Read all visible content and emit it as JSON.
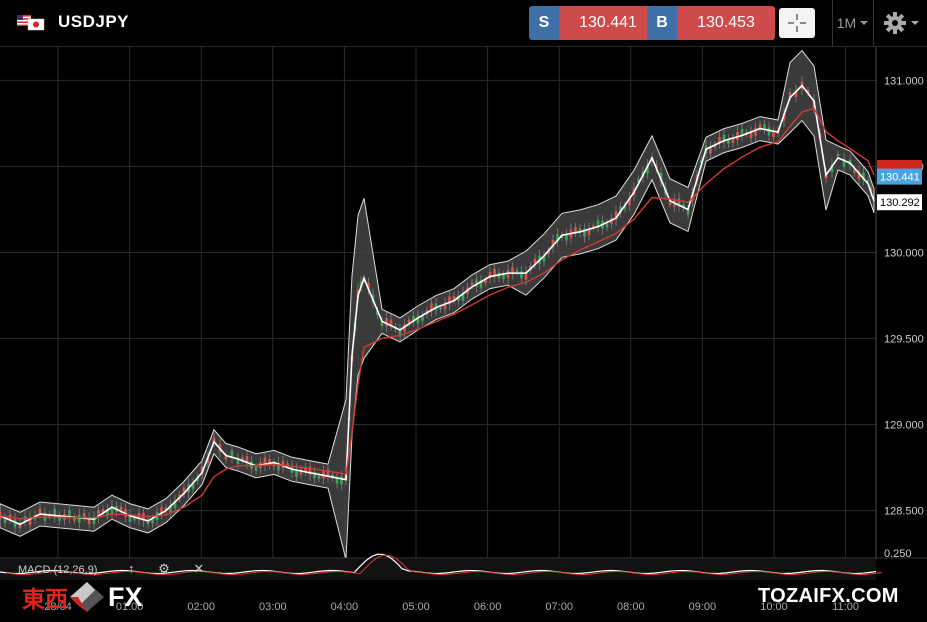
{
  "header": {
    "symbol": "USDJPY",
    "sell": {
      "label": "S",
      "price": "130.441"
    },
    "buy": {
      "label": "B",
      "price": "130.453"
    },
    "timeframe": "1M"
  },
  "macd": {
    "label": "MACD (12,26,9)",
    "tools": "↑ ⚙ ✕"
  },
  "watermarks": {
    "left_cn": "東西",
    "left_fx": "FX",
    "right": "TOZAIFX.COM"
  },
  "colors": {
    "sell_tag": "#3f6fa8",
    "price_bg": "#cf4b4b",
    "ma_line": "#d23a33",
    "band_fill": "#444444",
    "last_price": "#4aa3df"
  },
  "chart_data": {
    "type": "line",
    "title": "",
    "y_ticks": [
      "131.000",
      "130.500",
      "130.000",
      "129.500",
      "129.000",
      "128.500"
    ],
    "macd_tick": "0.250",
    "x_ticks": [
      "28/04",
      "01:00",
      "02:00",
      "03:00",
      "04:00",
      "05:00",
      "06:00",
      "07:00",
      "08:00",
      "09:00",
      "10:00",
      "11:00"
    ],
    "ylim": [
      128.3,
      131.2
    ],
    "price_labels": [
      {
        "value": "130.441",
        "kind": "current"
      },
      {
        "value": "130.292",
        "kind": "low"
      }
    ],
    "series": [
      {
        "x": [
          "00:30",
          "00:45",
          "01:00",
          "01:15",
          "01:30",
          "01:45",
          "02:00",
          "02:10",
          "02:20",
          "02:30",
          "02:45",
          "03:00",
          "03:15",
          "03:30",
          "03:45",
          "04:00",
          "04:05",
          "04:10",
          "04:15",
          "04:30",
          "04:45",
          "05:00",
          "05:15",
          "05:30",
          "05:45",
          "06:00",
          "06:15",
          "06:30",
          "06:45",
          "07:00",
          "07:15",
          "07:30",
          "07:45",
          "08:00",
          "08:15",
          "08:30",
          "08:45",
          "09:00",
          "09:15",
          "09:30",
          "09:45",
          "10:00",
          "10:10",
          "10:20",
          "10:30",
          "10:40",
          "10:50",
          "11:00",
          "11:15",
          "11:20"
        ],
        "values": [
          128.45,
          128.52,
          128.47,
          128.44,
          128.5,
          128.6,
          128.72,
          128.9,
          128.82,
          128.8,
          128.76,
          128.78,
          128.74,
          128.72,
          128.7,
          128.68,
          129.4,
          129.75,
          129.85,
          129.6,
          129.55,
          129.62,
          129.68,
          129.72,
          129.8,
          129.86,
          129.88,
          129.88,
          129.98,
          130.1,
          130.12,
          130.15,
          130.2,
          130.35,
          130.55,
          130.3,
          130.25,
          130.6,
          130.65,
          130.68,
          130.72,
          130.7,
          130.9,
          130.97,
          130.88,
          130.45,
          130.55,
          130.52,
          130.4,
          130.3
        ]
      }
    ]
  }
}
